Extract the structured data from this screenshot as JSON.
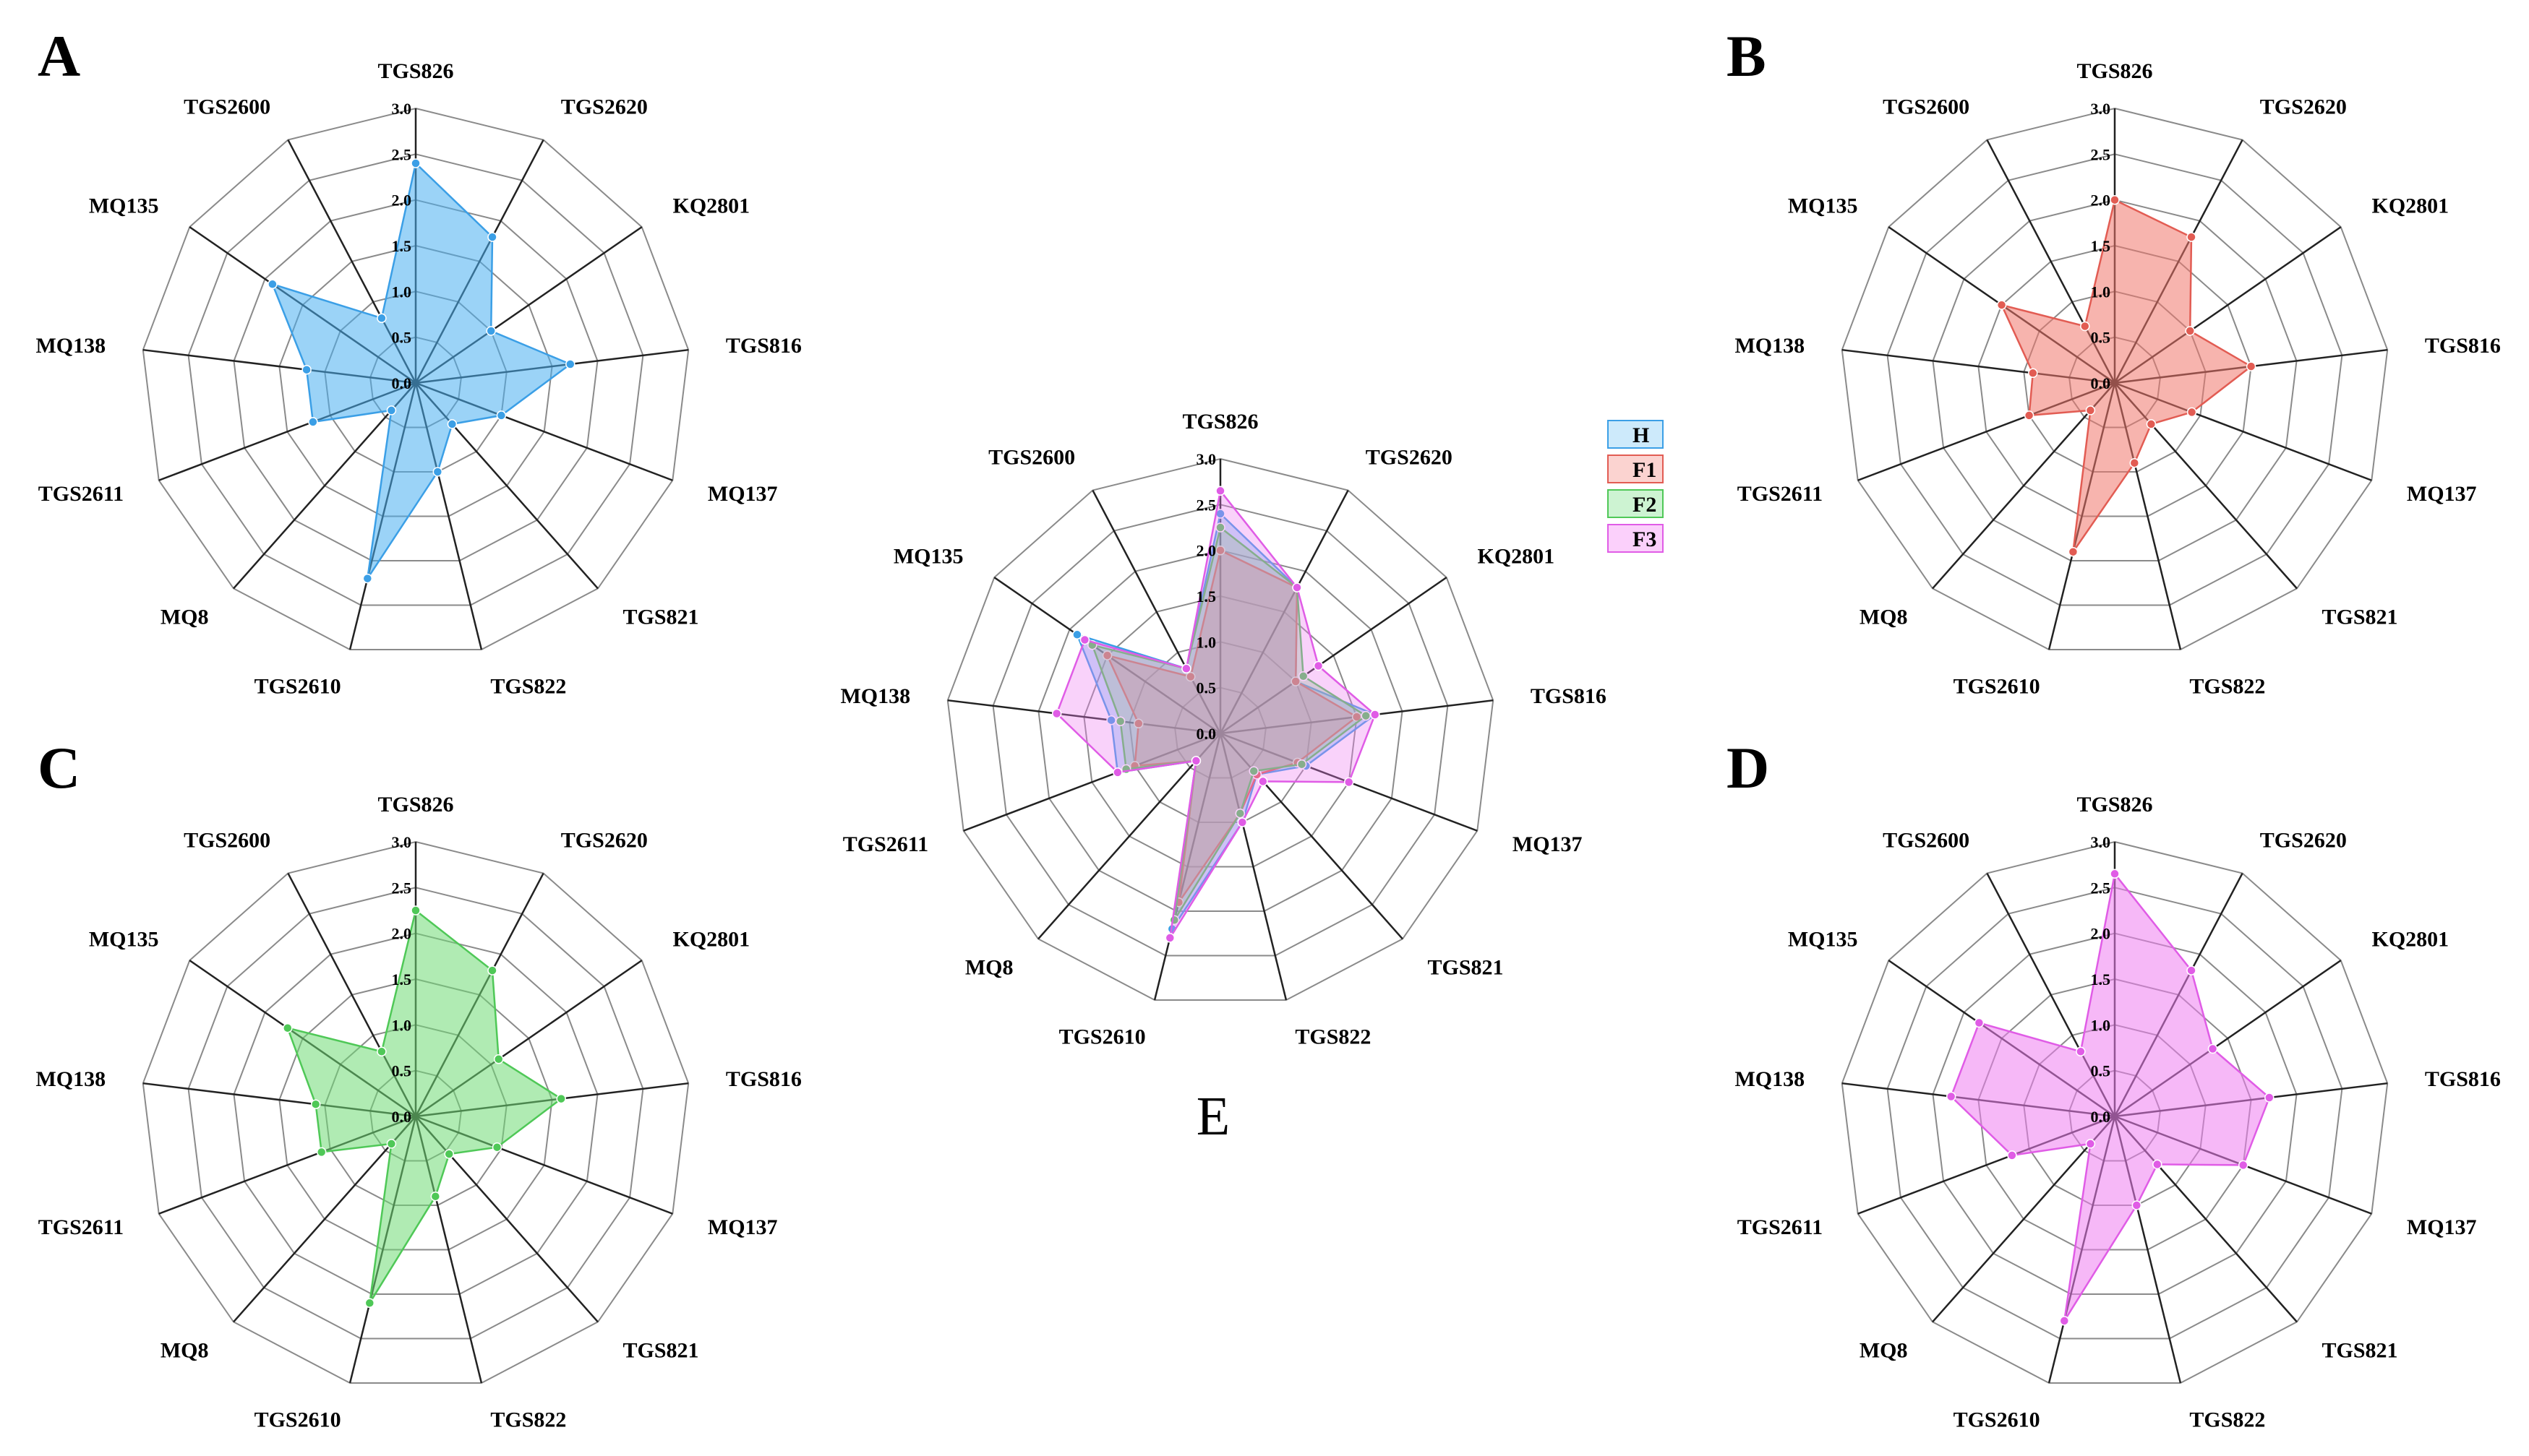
{
  "colors": {
    "H": {
      "fill": "#49aef0",
      "stroke": "#3b9fe6",
      "legend": "#cdeafb"
    },
    "F1": {
      "fill": "#f0766c",
      "stroke": "#e25c53",
      "legend": "#fbd3d0"
    },
    "F2": {
      "fill": "#6fdb74",
      "stroke": "#4fc857",
      "legend": "#cdf3d2"
    },
    "F3": {
      "fill": "#ef7ef0",
      "stroke": "#e05ce6",
      "legend": "#fbd0fb"
    }
  },
  "chart_data": [
    {
      "type": "radar",
      "panel": "A",
      "axes": [
        "TGS826",
        "TGS2620",
        "KQ2801",
        "TGS816",
        "MQ137",
        "TGS821",
        "TGS822",
        "TGS2610",
        "MQ8",
        "TGS2611",
        "MQ138",
        "MQ135",
        "TGS2600"
      ],
      "ticks": [
        "0.0",
        "0.5",
        "1.0",
        "1.5",
        "2.0",
        "2.5",
        "3.0"
      ],
      "rmax": 3.0,
      "series": [
        {
          "name": "H",
          "values": [
            2.4,
            1.8,
            1.0,
            1.7,
            1.0,
            0.6,
            1.0,
            2.2,
            0.4,
            1.2,
            1.2,
            1.9,
            0.8
          ]
        }
      ]
    },
    {
      "type": "radar",
      "panel": "B",
      "axes": [
        "TGS826",
        "TGS2620",
        "KQ2801",
        "TGS816",
        "MQ137",
        "TGS821",
        "TGS822",
        "TGS2610",
        "MQ8",
        "TGS2611",
        "MQ138",
        "MQ135",
        "TGS2600"
      ],
      "ticks": [
        "0.0",
        "0.5",
        "1.0",
        "1.5",
        "2.0",
        "2.5",
        "3.0"
      ],
      "rmax": 3.0,
      "series": [
        {
          "name": "F1",
          "values": [
            2.0,
            1.8,
            1.0,
            1.5,
            0.9,
            0.6,
            0.9,
            1.9,
            0.4,
            1.0,
            0.9,
            1.5,
            0.7
          ]
        }
      ]
    },
    {
      "type": "radar",
      "panel": "C",
      "axes": [
        "TGS826",
        "TGS2620",
        "KQ2801",
        "TGS816",
        "MQ137",
        "TGS821",
        "TGS822",
        "TGS2610",
        "MQ8",
        "TGS2611",
        "MQ138",
        "MQ135",
        "TGS2600"
      ],
      "ticks": [
        "0.0",
        "0.5",
        "1.0",
        "1.5",
        "2.0",
        "2.5",
        "3.0"
      ],
      "rmax": 3.0,
      "series": [
        {
          "name": "F2",
          "values": [
            2.25,
            1.8,
            1.1,
            1.6,
            0.95,
            0.55,
            0.9,
            2.1,
            0.4,
            1.1,
            1.1,
            1.7,
            0.8
          ]
        }
      ]
    },
    {
      "type": "radar",
      "panel": "D",
      "axes": [
        "TGS826",
        "TGS2620",
        "KQ2801",
        "TGS816",
        "MQ137",
        "TGS821",
        "TGS822",
        "TGS2610",
        "MQ8",
        "TGS2611",
        "MQ138",
        "MQ135",
        "TGS2600"
      ],
      "ticks": [
        "0.0",
        "0.5",
        "1.0",
        "1.5",
        "2.0",
        "2.5",
        "3.0"
      ],
      "rmax": 3.0,
      "series": [
        {
          "name": "F3",
          "values": [
            2.65,
            1.8,
            1.3,
            1.7,
            1.5,
            0.7,
            1.0,
            2.3,
            0.4,
            1.2,
            1.8,
            1.8,
            0.8
          ]
        }
      ]
    },
    {
      "type": "radar",
      "panel": "E",
      "caption": "E",
      "axes": [
        "TGS826",
        "TGS2620",
        "KQ2801",
        "TGS816",
        "MQ137",
        "TGS821",
        "TGS822",
        "TGS2610",
        "MQ8",
        "TGS2611",
        "MQ138",
        "MQ135",
        "TGS2600"
      ],
      "ticks": [
        "0.0",
        "0.5",
        "1.0",
        "1.5",
        "2.0",
        "2.5",
        "3.0"
      ],
      "rmax": 3.0,
      "legend": [
        "H",
        "F1",
        "F2",
        "F3"
      ],
      "series": [
        {
          "name": "H",
          "values": [
            2.4,
            1.8,
            1.0,
            1.7,
            1.0,
            0.6,
            1.0,
            2.2,
            0.4,
            1.2,
            1.2,
            1.9,
            0.8
          ]
        },
        {
          "name": "F1",
          "values": [
            2.0,
            1.8,
            1.0,
            1.5,
            0.9,
            0.6,
            0.9,
            1.9,
            0.4,
            1.0,
            0.9,
            1.5,
            0.7
          ]
        },
        {
          "name": "F2",
          "values": [
            2.25,
            1.8,
            1.1,
            1.6,
            0.95,
            0.55,
            0.9,
            2.1,
            0.4,
            1.1,
            1.1,
            1.7,
            0.8
          ]
        },
        {
          "name": "F3",
          "values": [
            2.65,
            1.8,
            1.3,
            1.7,
            1.5,
            0.7,
            1.0,
            2.3,
            0.4,
            1.2,
            1.8,
            1.8,
            0.8
          ]
        }
      ]
    }
  ]
}
